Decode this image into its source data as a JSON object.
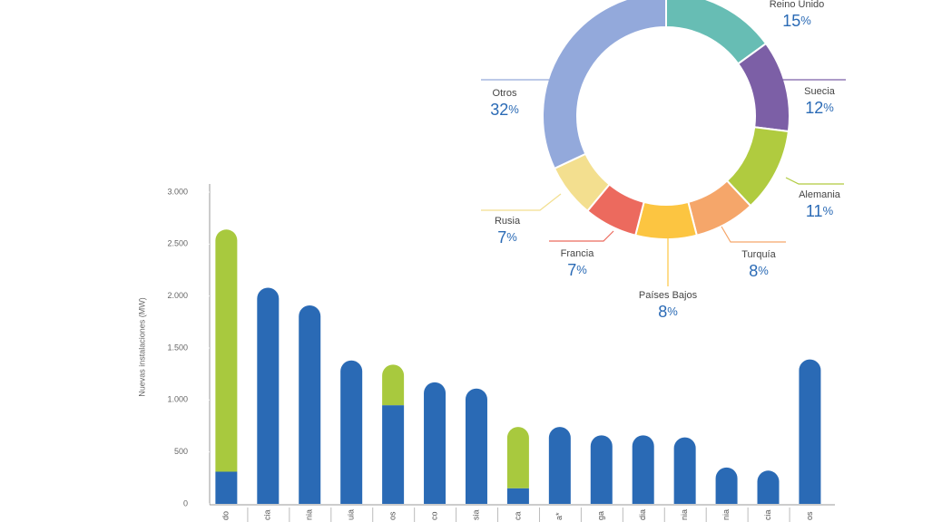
{
  "chart_data": [
    {
      "type": "bar",
      "y_label": "Nuevas instalaciones (MW)",
      "categories": [
        "do",
        "cia",
        "nia",
        "uia",
        "os",
        "co",
        "sia",
        "ca",
        "a*",
        "ga",
        "dia",
        "nia",
        "nia",
        "cia",
        "os"
      ],
      "series": [
        {
          "color": "#2a6ab5",
          "values": [
            310,
            2080,
            1910,
            1380,
            950,
            1170,
            1110,
            150,
            740,
            660,
            660,
            640,
            350,
            320,
            1390
          ]
        },
        {
          "color": "#a8c93e",
          "values": [
            2330,
            0,
            0,
            0,
            390,
            0,
            0,
            590,
            0,
            0,
            0,
            0,
            0,
            0,
            0
          ]
        }
      ],
      "stacked": true,
      "ylim": [
        0,
        3000
      ],
      "yticks": [
        {
          "value": 0,
          "label": "0"
        },
        {
          "value": 500,
          "label": "500"
        },
        {
          "value": 1000,
          "label": "1.000"
        },
        {
          "value": 1500,
          "label": "1.500"
        },
        {
          "value": 2000,
          "label": "2.000"
        },
        {
          "value": 2500,
          "label": "2.500"
        },
        {
          "value": 3000,
          "label": "3.000"
        }
      ]
    },
    {
      "type": "donut",
      "categories": [
        "Reino Unido",
        "Suecia",
        "Alemania",
        "Turquía",
        "Países Bajos",
        "Francia",
        "Rusia",
        "Otros"
      ],
      "values": [
        15,
        12,
        11,
        8,
        8,
        7,
        7,
        32
      ],
      "value_labels": [
        "15%",
        "12%",
        "11%",
        "8%",
        "8%",
        "7%",
        "7%",
        "32%"
      ],
      "colors": [
        "#67bdb4",
        "#7c5fa6",
        "#b0cb3f",
        "#f5a66a",
        "#fcc541",
        "#ec6a5e",
        "#f3df8f",
        "#93a9db"
      ]
    }
  ]
}
